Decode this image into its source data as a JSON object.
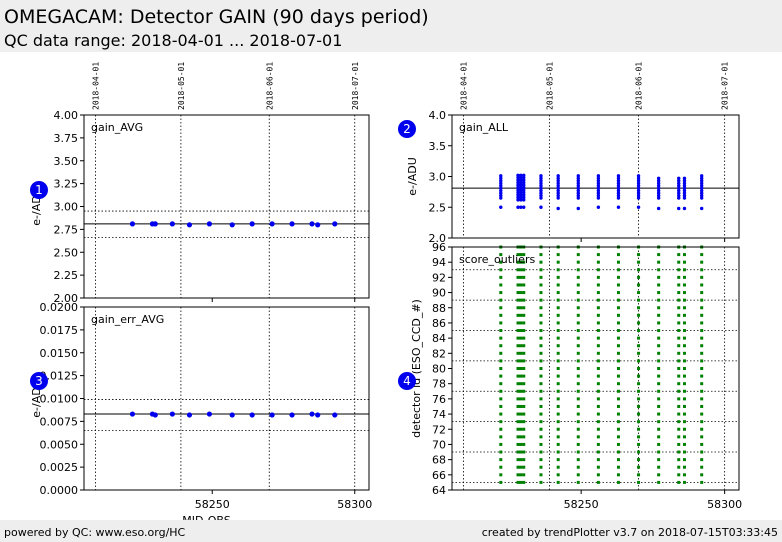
{
  "header": {
    "title": "OMEGACAM: Detector GAIN (90 days period)",
    "subtitle": "QC data range: 2018-04-01 ... 2018-07-01"
  },
  "footer": {
    "left": "powered by QC: www.eso.org/HC",
    "right": "created by trendPlotter v3.7 on 2018-07-15T03:33:45"
  },
  "badges": [
    "1",
    "2",
    "3",
    "4"
  ],
  "colors": {
    "blue": "#0000ee",
    "green": "#008000",
    "header_bg": "#eeeeee"
  },
  "chart_data": [
    {
      "id": "gain_avg",
      "type": "scatter",
      "label": "gain_AVG",
      "ylabel": "e-/ADU",
      "xlabel": "",
      "xlim": [
        58205,
        58305
      ],
      "ylim": [
        2.0,
        4.0
      ],
      "yticks": [
        2.0,
        2.25,
        2.5,
        2.75,
        3.0,
        3.25,
        3.5,
        3.75,
        4.0
      ],
      "yticklabels": [
        "2.00",
        "2.25",
        "2.50",
        "2.75",
        "3.00",
        "3.25",
        "3.50",
        "3.75",
        "4.00"
      ],
      "xticks": [
        58250,
        58300
      ],
      "xticklabels": [
        "",
        ""
      ],
      "date_lines": [
        58209,
        58239,
        58270,
        58300
      ],
      "date_labels": [
        "2018-04-01",
        "2018-05-01",
        "2018-06-01",
        "2018-07-01"
      ],
      "ref_line": 2.81,
      "ref_dotted": [
        2.95,
        2.66
      ],
      "color": "#0000ee",
      "x": [
        58222,
        58229,
        58230,
        58236,
        58242,
        58249,
        58257,
        58264,
        58271,
        58278,
        58285,
        58287,
        58293
      ],
      "y": [
        2.81,
        2.81,
        2.81,
        2.81,
        2.8,
        2.81,
        2.8,
        2.81,
        2.81,
        2.81,
        2.81,
        2.8,
        2.81
      ]
    },
    {
      "id": "gain_err_avg",
      "type": "scatter",
      "label": "gain_err_AVG",
      "ylabel": "e-/ADU",
      "xlabel": "MJD-OBS",
      "xlim": [
        58205,
        58305
      ],
      "ylim": [
        0,
        0.02
      ],
      "yticks": [
        0,
        0.0025,
        0.005,
        0.0075,
        0.01,
        0.0125,
        0.015,
        0.0175,
        0.02
      ],
      "yticklabels": [
        "0.0000",
        "0.0025",
        "0.0050",
        "0.0075",
        "0.0100",
        "0.0125",
        "0.0150",
        "0.0175",
        "0.0200"
      ],
      "xticks": [
        58250,
        58300
      ],
      "xticklabels": [
        "58250",
        "58300"
      ],
      "date_lines": [
        58209,
        58239,
        58270,
        58300
      ],
      "ref_line": 0.0083,
      "ref_dotted": [
        0.0099,
        0.0065
      ],
      "color": "#0000ee",
      "x": [
        58222,
        58229,
        58230,
        58236,
        58242,
        58249,
        58257,
        58264,
        58271,
        58278,
        58285,
        58287,
        58293
      ],
      "y": [
        0.0083,
        0.0083,
        0.0082,
        0.0083,
        0.0082,
        0.0083,
        0.0082,
        0.0082,
        0.0082,
        0.0082,
        0.0083,
        0.0082,
        0.0082
      ]
    },
    {
      "id": "gain_all",
      "type": "scatter",
      "label": "gain_ALL",
      "ylabel": "e-/ADU",
      "xlabel": "",
      "xlim": [
        58205,
        58305
      ],
      "ylim": [
        2.0,
        4.0
      ],
      "yticks": [
        2.0,
        2.5,
        3.0,
        3.5,
        4.0
      ],
      "yticklabels": [
        "2.0",
        "2.5",
        "3.0",
        "3.5",
        "4.0"
      ],
      "xticks": [
        58250,
        58300
      ],
      "xticklabels": [
        "",
        ""
      ],
      "date_lines": [
        58209,
        58239,
        58270,
        58300
      ],
      "date_labels": [
        "2018-04-01",
        "2018-05-01",
        "2018-06-01",
        "2018-07-01"
      ],
      "ref_line": 2.81,
      "ref_dotted": [],
      "color": "#0000ee",
      "columns_x": [
        58222,
        58228,
        58229,
        58230,
        58236,
        58242,
        58249,
        58256,
        58263,
        58270,
        58277,
        58284,
        58286,
        58292
      ],
      "columns_low": [
        2.5,
        2.5,
        2.5,
        2.5,
        2.5,
        2.48,
        2.48,
        2.5,
        2.5,
        2.5,
        2.48,
        2.48,
        2.48,
        2.48
      ],
      "columns_min": [
        2.65,
        2.62,
        2.62,
        2.62,
        2.65,
        2.65,
        2.65,
        2.65,
        2.65,
        2.65,
        2.65,
        2.65,
        2.65,
        2.65
      ],
      "columns_max": [
        3.02,
        3.02,
        3.02,
        3.02,
        3.02,
        3.02,
        3.02,
        3.02,
        3.02,
        3.02,
        3.0,
        3.0,
        3.0,
        3.02
      ]
    },
    {
      "id": "score_outliers",
      "type": "scatter",
      "label": "score_outliers",
      "ylabel": "detector id (ESO_CCD_#)",
      "xlabel": "",
      "xlim": [
        58205,
        58305
      ],
      "ylim": [
        64,
        96
      ],
      "yticks": [
        64,
        66,
        68,
        70,
        72,
        74,
        76,
        78,
        80,
        82,
        84,
        86,
        88,
        90,
        92,
        94,
        96
      ],
      "yticklabels": [
        "64",
        "66",
        "68",
        "70",
        "72",
        "74",
        "76",
        "78",
        "80",
        "82",
        "84",
        "86",
        "88",
        "90",
        "92",
        "94",
        "96"
      ],
      "xticks": [
        58250,
        58300
      ],
      "xticklabels": [
        "58250",
        "58300"
      ],
      "date_lines": [
        58209,
        58239,
        58270,
        58300
      ],
      "hlines": [
        65,
        69,
        73,
        77,
        81,
        85,
        89,
        93
      ],
      "color": "#008000",
      "columns_x": [
        58222,
        58228,
        58229,
        58230,
        58236,
        58242,
        58249,
        58256,
        58263,
        58270,
        58277,
        58284,
        58286,
        58292
      ],
      "detector_min": 65,
      "detector_max": 96
    }
  ]
}
